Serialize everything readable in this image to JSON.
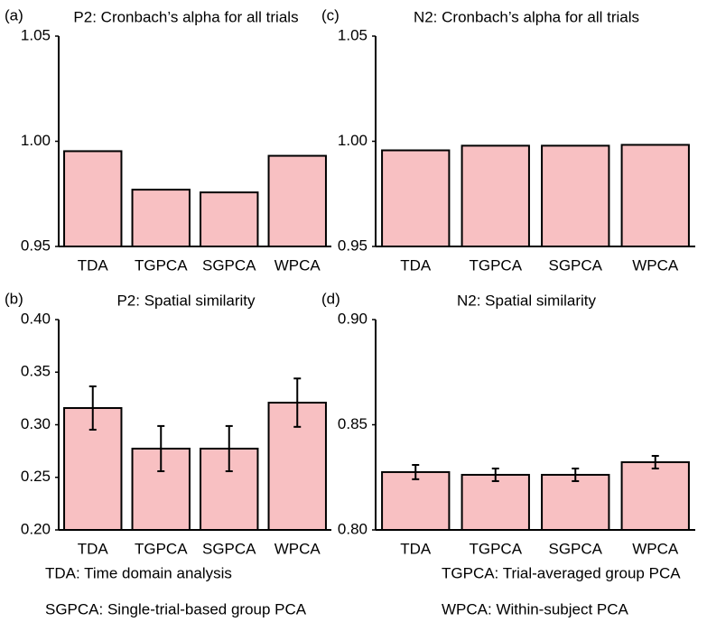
{
  "chart_data": [
    {
      "type": "bar",
      "label": "(a)",
      "title": "P2: Cronbach’s alpha for all trials",
      "categories": [
        "TDA",
        "TGPCA",
        "SGPCA",
        "WPCA"
      ],
      "values": [
        0.9953,
        0.977,
        0.9757,
        0.9931
      ],
      "color": "#f8c0c2",
      "ylim": [
        0.95,
        1.05
      ],
      "yticks": [
        0.95,
        {
          "value": 1.0,
          "label": "1.00"
        },
        1.05
      ]
    },
    {
      "type": "bar",
      "label": "(b)",
      "title": "P2: Spatial similarity",
      "categories": [
        "TDA",
        "TGPCA",
        "SGPCA",
        "WPCA"
      ],
      "values": [
        0.3159,
        0.2773,
        0.2773,
        0.321
      ],
      "errors": [
        0.0206,
        0.0215,
        0.0215,
        0.023
      ],
      "color": "#f8c0c2",
      "ylim": [
        0.2,
        0.4
      ],
      "yticks": [
        {
          "value": 0.2,
          "label": "0.20"
        },
        0.25,
        {
          "value": 0.3,
          "label": "0.30"
        },
        0.35,
        {
          "value": 0.4,
          "label": "0.40"
        }
      ]
    },
    {
      "type": "bar",
      "label": "(c)",
      "title": "N2: Cronbach’s alpha for all trials",
      "categories": [
        "TDA",
        "TGPCA",
        "SGPCA",
        "WPCA"
      ],
      "values": [
        0.9957,
        0.9979,
        0.9979,
        0.9983
      ],
      "color": "#f8c0c2",
      "ylim": [
        0.95,
        1.05
      ],
      "yticks": [
        0.95,
        {
          "value": 1.0,
          "label": "1.00"
        },
        1.05
      ]
    },
    {
      "type": "bar",
      "label": "(d)",
      "title": "N2: Spatial similarity",
      "categories": [
        "TDA",
        "TGPCA",
        "SGPCA",
        "WPCA"
      ],
      "values": [
        0.8275,
        0.8262,
        0.8262,
        0.8322
      ],
      "errors": [
        0.0034,
        0.003,
        0.003,
        0.003
      ],
      "color": "#f8c0c2",
      "ylim": [
        0.8,
        0.9
      ],
      "yticks": [
        {
          "value": 0.8,
          "label": "0.80"
        },
        0.85,
        {
          "value": 0.9,
          "label": "0.90"
        }
      ]
    }
  ],
  "notes": [
    "TDA: Time domain analysis",
    "TGPCA: Trial-averaged group PCA",
    "SGPCA: Single-trial-based group PCA",
    "WPCA: Within-subject PCA"
  ]
}
